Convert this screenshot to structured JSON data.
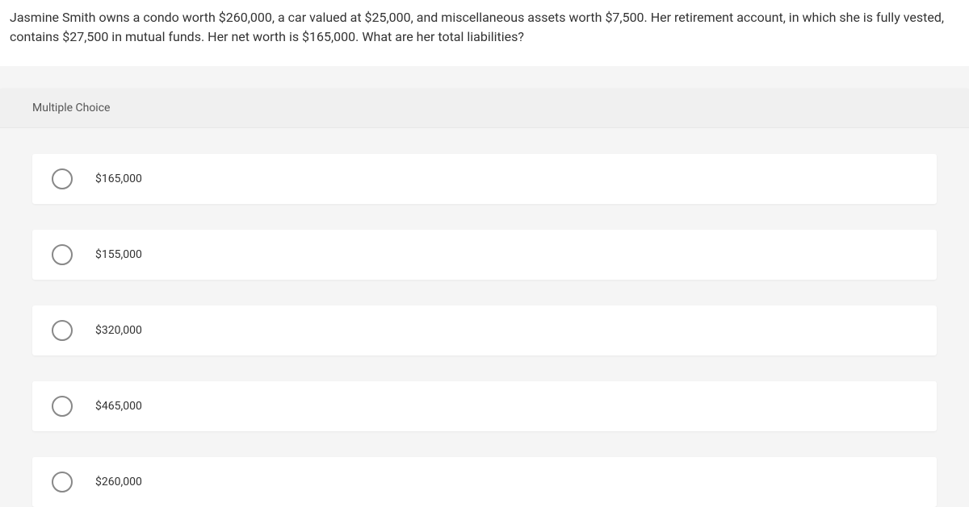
{
  "question": {
    "text": "Jasmine Smith owns a condo worth $260,000, a car valued at $25,000, and miscellaneous assets worth $7,500. Her retirement account, in which she is fully vested, contains $27,500 in mutual funds. Her net worth is $165,000. What are her total liabilities?"
  },
  "section": {
    "header": "Multiple Choice"
  },
  "options": [
    {
      "label": "$165,000"
    },
    {
      "label": "$155,000"
    },
    {
      "label": "$320,000"
    },
    {
      "label": "$465,000"
    },
    {
      "label": "$260,000"
    }
  ]
}
